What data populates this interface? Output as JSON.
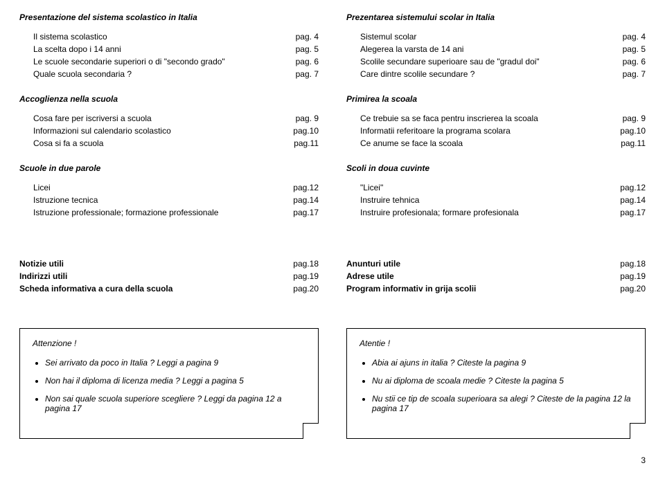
{
  "left": {
    "s1": {
      "title": "Presentazione del sistema scolastico in Italia",
      "rows": [
        {
          "label": "Il sistema scolastico",
          "pg": "pag. 4"
        },
        {
          "label": "La scelta dopo i 14 anni",
          "pg": "pag. 5"
        },
        {
          "label": "Le scuole secondarie superiori o di \"secondo grado\"",
          "pg": "pag. 6"
        },
        {
          "label": "Quale scuola secondaria ?",
          "pg": "pag. 7"
        }
      ]
    },
    "s2": {
      "title": "Accoglienza nella scuola",
      "rows": [
        {
          "label": "Cosa fare per iscriversi a scuola",
          "pg": "pag. 9"
        },
        {
          "label": "Informazioni sul calendario scolastico",
          "pg": "pag.10"
        },
        {
          "label": "Cosa si fa a scuola",
          "pg": "pag.11"
        }
      ]
    },
    "s3": {
      "title": "Scuole in due parole",
      "rows": [
        {
          "label": "Licei",
          "pg": "pag.12"
        },
        {
          "label": "Istruzione tecnica",
          "pg": "pag.14"
        },
        {
          "label": "Istruzione professionale; formazione professionale",
          "pg": "pag.17"
        }
      ]
    },
    "info": [
      {
        "label": "Notizie utili",
        "pg": "pag.18"
      },
      {
        "label": "Indirizzi utili",
        "pg": "pag.19"
      },
      {
        "label": "Scheda informativa a cura della scuola",
        "pg": "pag.20"
      }
    ],
    "attn": {
      "title": "Attenzione !",
      "items": [
        "Sei arrivato da poco in Italia ? Leggi a pagina 9",
        "Non hai il diploma di licenza media ? Leggi a pagina 5",
        "Non sai quale scuola superiore scegliere ? Leggi da pagina 12 a pagina 17"
      ]
    }
  },
  "right": {
    "s1": {
      "title": "Prezentarea sistemului scolar in Italia",
      "rows": [
        {
          "label": "Sistemul scolar",
          "pg": "pag. 4"
        },
        {
          "label": "Alegerea la varsta de 14 ani",
          "pg": "pag. 5"
        },
        {
          "label": "Scolile secundare superioare sau de \"gradul doi\"",
          "pg": "pag. 6"
        },
        {
          "label": "Care dintre scolile secundare ?",
          "pg": "pag. 7"
        }
      ]
    },
    "s2": {
      "title": "Primirea la scoala",
      "rows": [
        {
          "label": "Ce trebuie sa se faca pentru inscrierea la scoala",
          "pg": "pag. 9"
        },
        {
          "label": "Informatii referitoare la programa scolara",
          "pg": "pag.10"
        },
        {
          "label": "Ce anume se face la scoala",
          "pg": "pag.11"
        }
      ]
    },
    "s3": {
      "title": "Scoli in doua cuvinte",
      "rows": [
        {
          "label": "\"Licei\"",
          "pg": "pag.12"
        },
        {
          "label": "Instruire tehnica",
          "pg": "pag.14"
        },
        {
          "label": "Instruire profesionala; formare profesionala",
          "pg": "pag.17"
        }
      ]
    },
    "info": [
      {
        "label": "Anunturi utile",
        "pg": "pag.18"
      },
      {
        "label": "Adrese utile",
        "pg": "pag.19"
      },
      {
        "label": "Program informativ  in grija scolii",
        "pg": "pag.20"
      }
    ],
    "attn": {
      "title": "Atentie !",
      "items": [
        "Abia ai ajuns in italia ? Citeste la pagina 9",
        "Nu ai diploma de scoala medie ? Citeste la pagina 5",
        "Nu stii ce tip de scoala superioara sa alegi ? Citeste de la pagina 12 la pagina 17"
      ]
    }
  },
  "pageNumber": "3"
}
